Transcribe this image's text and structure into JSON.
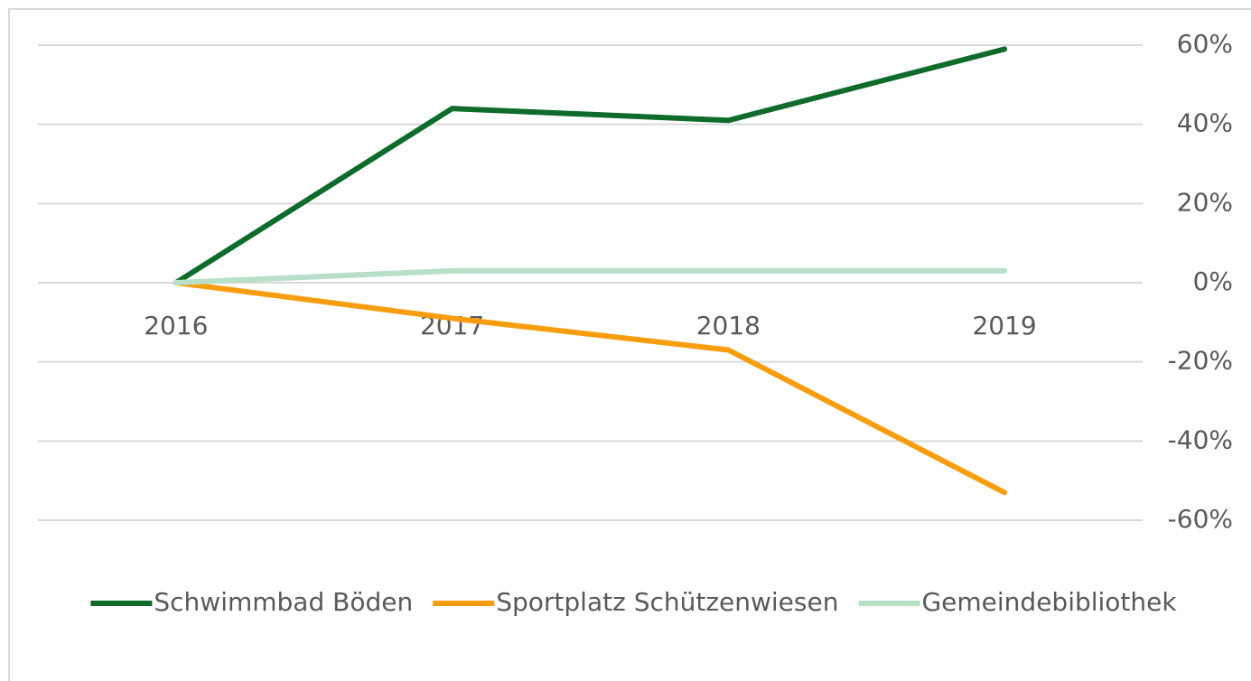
{
  "chart_data": {
    "type": "line",
    "categories": [
      "2016",
      "2017",
      "2018",
      "2019"
    ],
    "series": [
      {
        "name": "Schwimmbad Böden",
        "color": "#0e6b2c",
        "values": [
          0,
          44,
          41,
          59
        ]
      },
      {
        "name": "Sportplatz Schützenwiesen",
        "color": "#f89d0e",
        "values": [
          0,
          -9,
          -17,
          -53
        ]
      },
      {
        "name": "Gemeindebibliothek",
        "color": "#b8dfc8",
        "values": [
          0,
          3,
          3,
          3
        ]
      }
    ],
    "ylim": [
      -60,
      60
    ],
    "yticks": [
      {
        "value": -60,
        "label": "-60%"
      },
      {
        "value": -40,
        "label": "-40%"
      },
      {
        "value": -20,
        "label": "-20%"
      },
      {
        "value": 0,
        "label": "0%"
      },
      {
        "value": 20,
        "label": "20%"
      },
      {
        "value": 40,
        "label": "40%"
      },
      {
        "value": 60,
        "label": "60%"
      }
    ],
    "y_axis_side": "right",
    "grid": true,
    "legend": "bottom"
  }
}
